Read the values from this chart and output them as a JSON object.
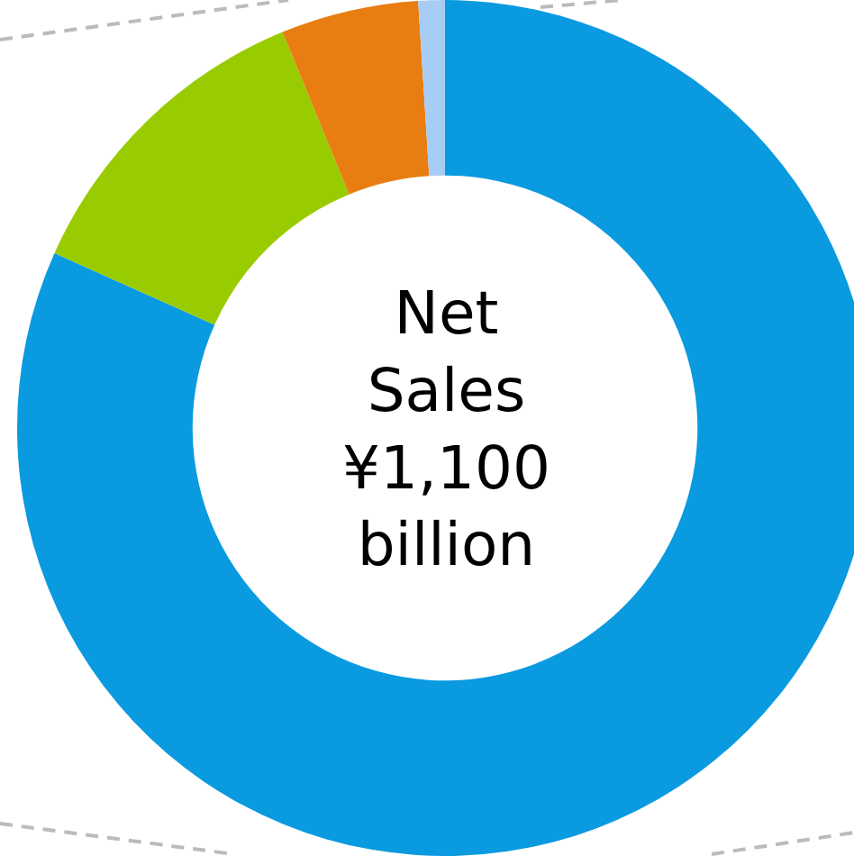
{
  "chart_data": {
    "type": "donut",
    "title": "Net Sales ¥1,100 billion",
    "categories": [
      null,
      null,
      null,
      null
    ],
    "values": [
      81.7,
      12.1,
      5.2,
      1.0
    ],
    "colors": [
      "#0a9ae0",
      "#99cc00",
      "#e87e12",
      "#a8cdf5"
    ],
    "legend": false
  }
}
